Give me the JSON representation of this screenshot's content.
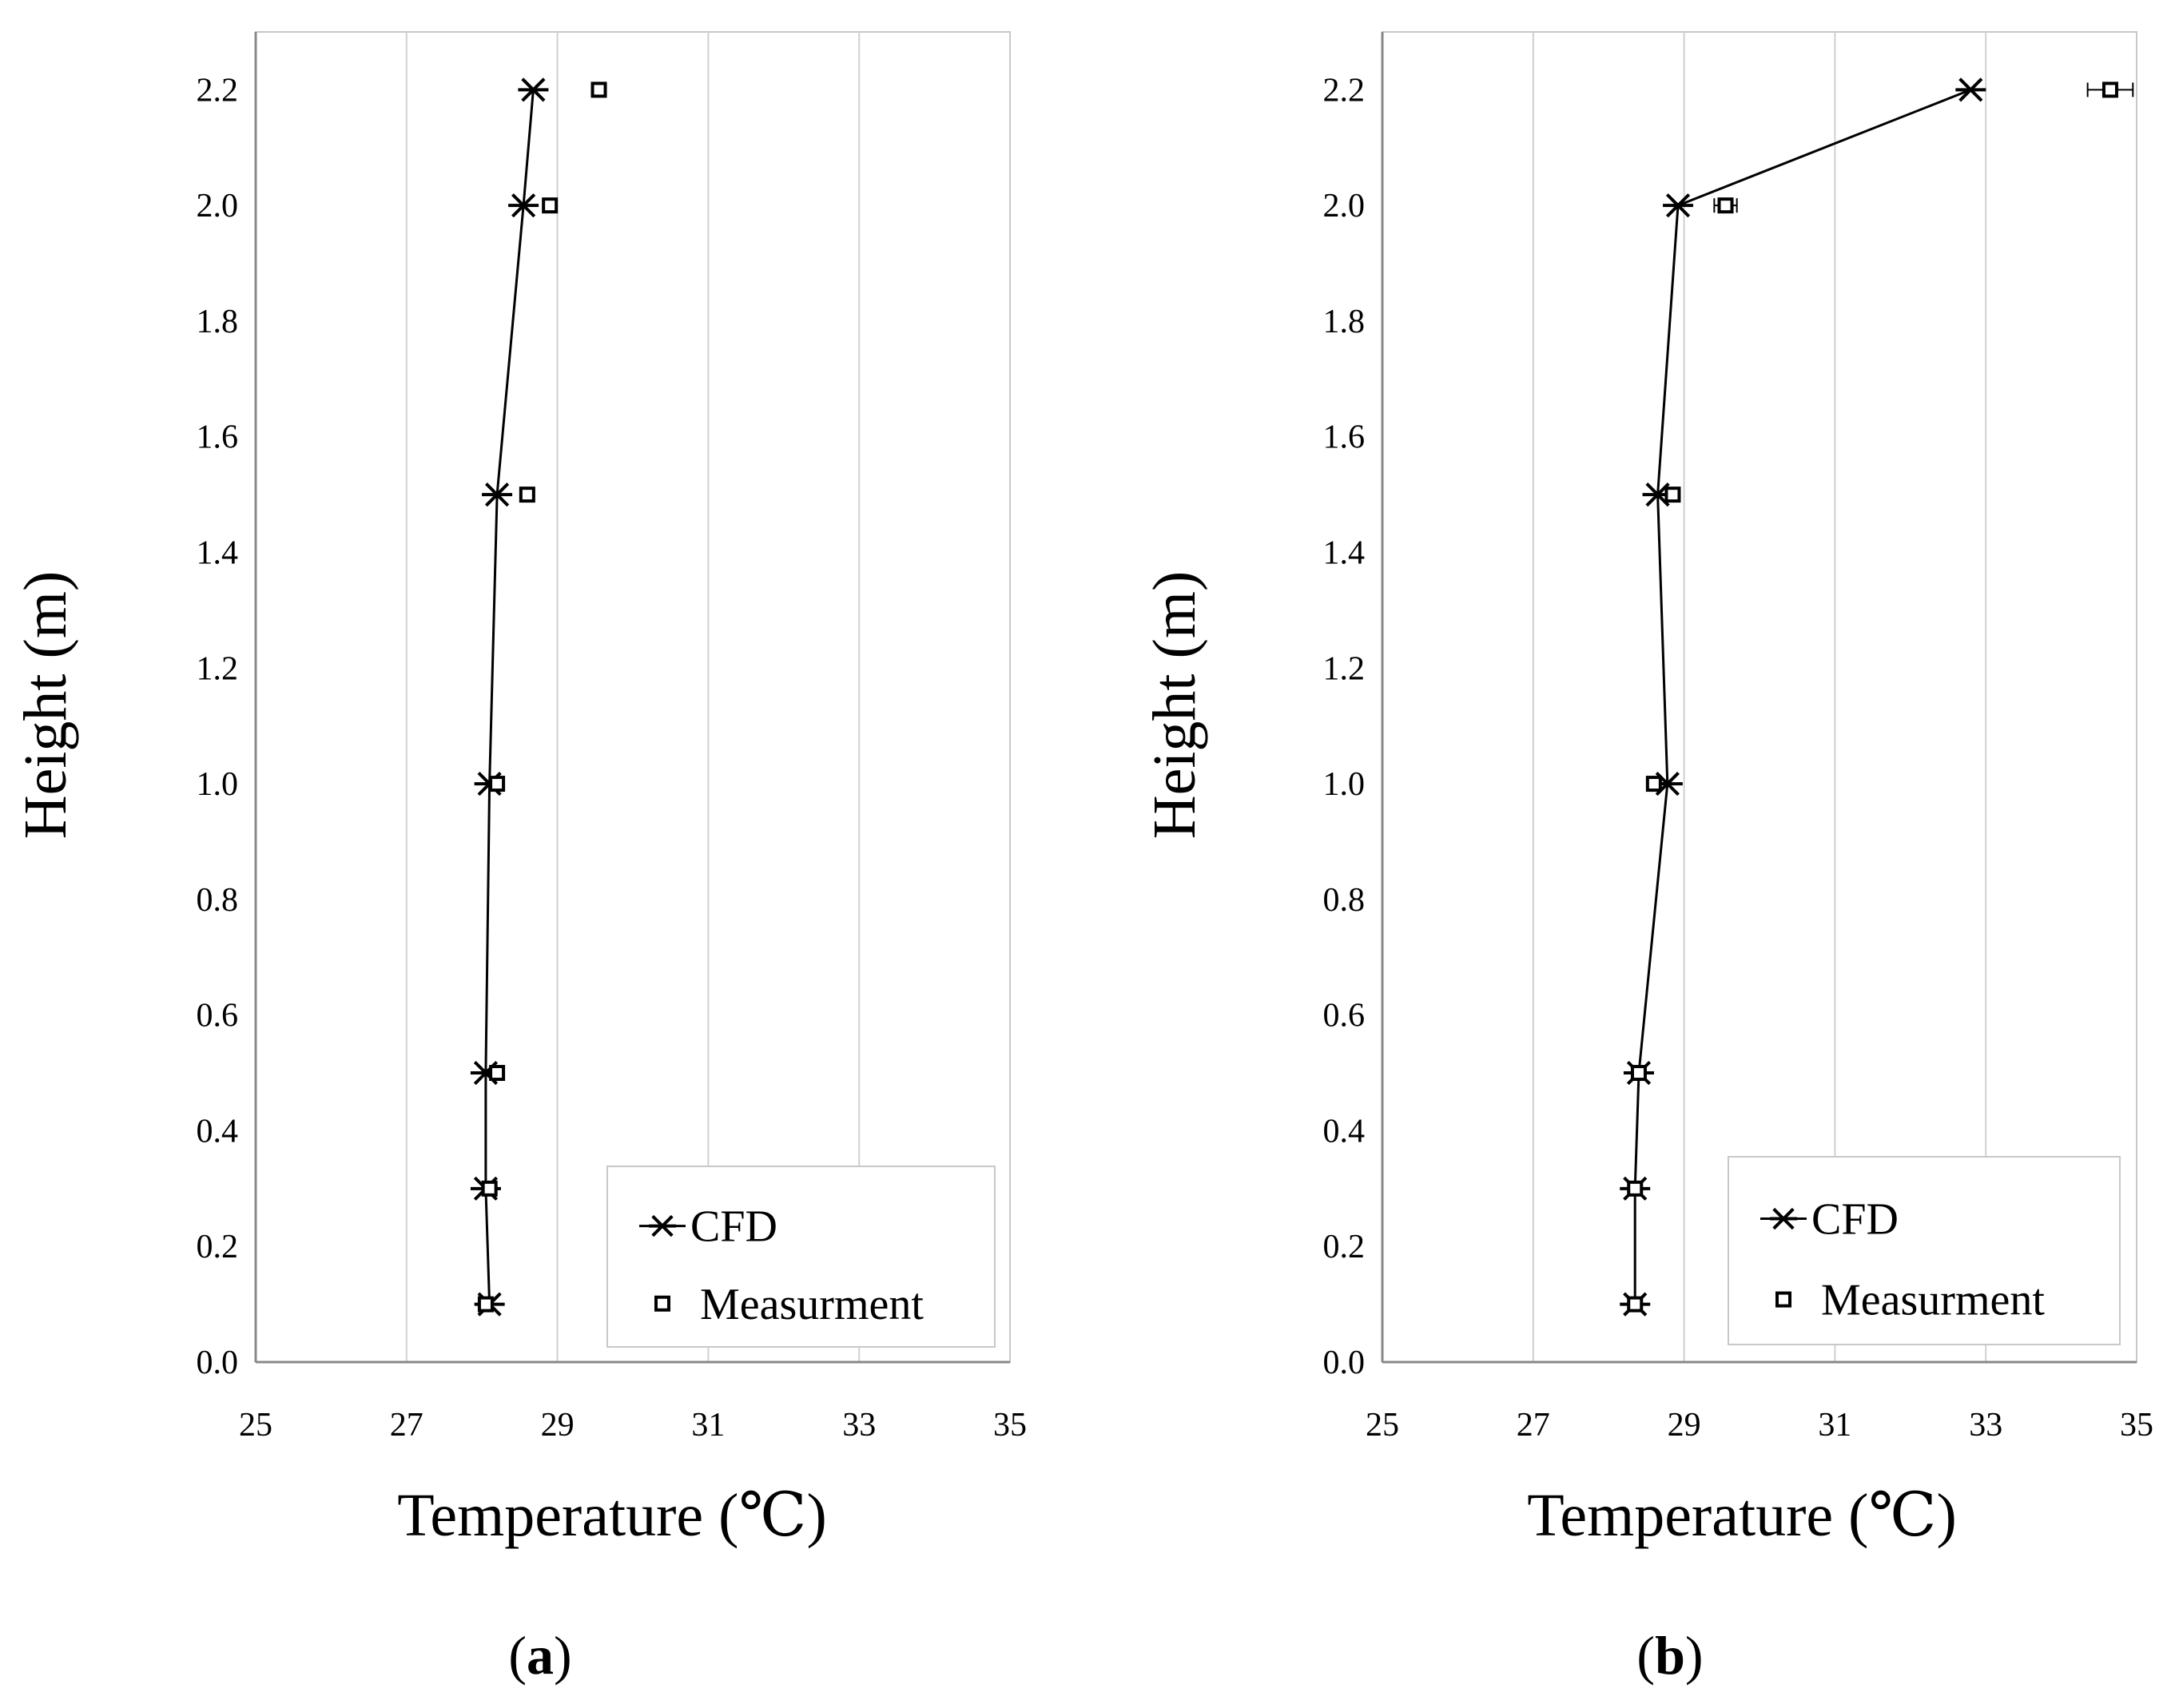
{
  "chart_data": [
    {
      "type": "line",
      "panel": "a",
      "panel_label": "(a)",
      "xlabel": "Temperature (℃)",
      "ylabel": "Height (m)",
      "xlim": [
        25,
        35
      ],
      "ylim": [
        0,
        2.3
      ],
      "x_ticks": [
        "25",
        "27",
        "29",
        "31",
        "33",
        "35"
      ],
      "y_ticks": [
        "0.0",
        "0.2",
        "0.4",
        "0.6",
        "0.8",
        "1.0",
        "1.2",
        "1.4",
        "1.6",
        "1.8",
        "2.0",
        "2.2"
      ],
      "grid": "vertical",
      "legend_position": "bottom-right",
      "series": [
        {
          "name": "CFD",
          "marker": "asterisk",
          "line": true,
          "points": [
            {
              "height": 0.1,
              "temp": 28.1
            },
            {
              "height": 0.3,
              "temp": 28.05
            },
            {
              "height": 0.5,
              "temp": 28.05
            },
            {
              "height": 1.0,
              "temp": 28.1
            },
            {
              "height": 1.5,
              "temp": 28.2
            },
            {
              "height": 2.0,
              "temp": 28.55
            },
            {
              "height": 2.2,
              "temp": 28.68
            }
          ]
        },
        {
          "name": "Measurment",
          "marker": "square",
          "line": false,
          "points": [
            {
              "height": 0.1,
              "temp": 28.05,
              "err": 0.05
            },
            {
              "height": 0.3,
              "temp": 28.1,
              "err": 0.05
            },
            {
              "height": 0.5,
              "temp": 28.2,
              "err": 0.05
            },
            {
              "height": 1.0,
              "temp": 28.2,
              "err": 0.05
            },
            {
              "height": 1.5,
              "temp": 28.6,
              "err": 0
            },
            {
              "height": 2.0,
              "temp": 28.9,
              "err": 0.05
            },
            {
              "height": 2.2,
              "temp": 29.55,
              "err": 0.05
            }
          ]
        }
      ]
    },
    {
      "type": "line",
      "panel": "b",
      "panel_label": "(b)",
      "xlabel": "Temperature (℃)",
      "ylabel": "Height (m)",
      "xlim": [
        25,
        35
      ],
      "ylim": [
        0,
        2.3
      ],
      "x_ticks": [
        "25",
        "27",
        "29",
        "31",
        "33",
        "35"
      ],
      "y_ticks": [
        "0.0",
        "0.2",
        "0.4",
        "0.6",
        "0.8",
        "1.0",
        "1.2",
        "1.4",
        "1.6",
        "1.8",
        "2.0",
        "2.2"
      ],
      "grid": "vertical",
      "legend_position": "bottom-right",
      "series": [
        {
          "name": "CFD",
          "marker": "asterisk",
          "line": true,
          "points": [
            {
              "height": 0.1,
              "temp": 28.35
            },
            {
              "height": 0.3,
              "temp": 28.35
            },
            {
              "height": 0.5,
              "temp": 28.4
            },
            {
              "height": 1.0,
              "temp": 28.78
            },
            {
              "height": 1.5,
              "temp": 28.65
            },
            {
              "height": 2.0,
              "temp": 28.92
            },
            {
              "height": 2.2,
              "temp": 32.8
            }
          ]
        },
        {
          "name": "Measurment",
          "marker": "square",
          "line": false,
          "points": [
            {
              "height": 0.1,
              "temp": 28.35,
              "err": 0.05
            },
            {
              "height": 0.3,
              "temp": 28.35,
              "err": 0.05
            },
            {
              "height": 0.5,
              "temp": 28.4,
              "err": 0.05
            },
            {
              "height": 1.0,
              "temp": 28.6,
              "err": 0.05
            },
            {
              "height": 1.5,
              "temp": 28.85,
              "err": 0.05
            },
            {
              "height": 2.0,
              "temp": 29.55,
              "err": 0.15
            },
            {
              "height": 2.2,
              "temp": 34.65,
              "err": 0.3
            }
          ]
        }
      ]
    }
  ]
}
